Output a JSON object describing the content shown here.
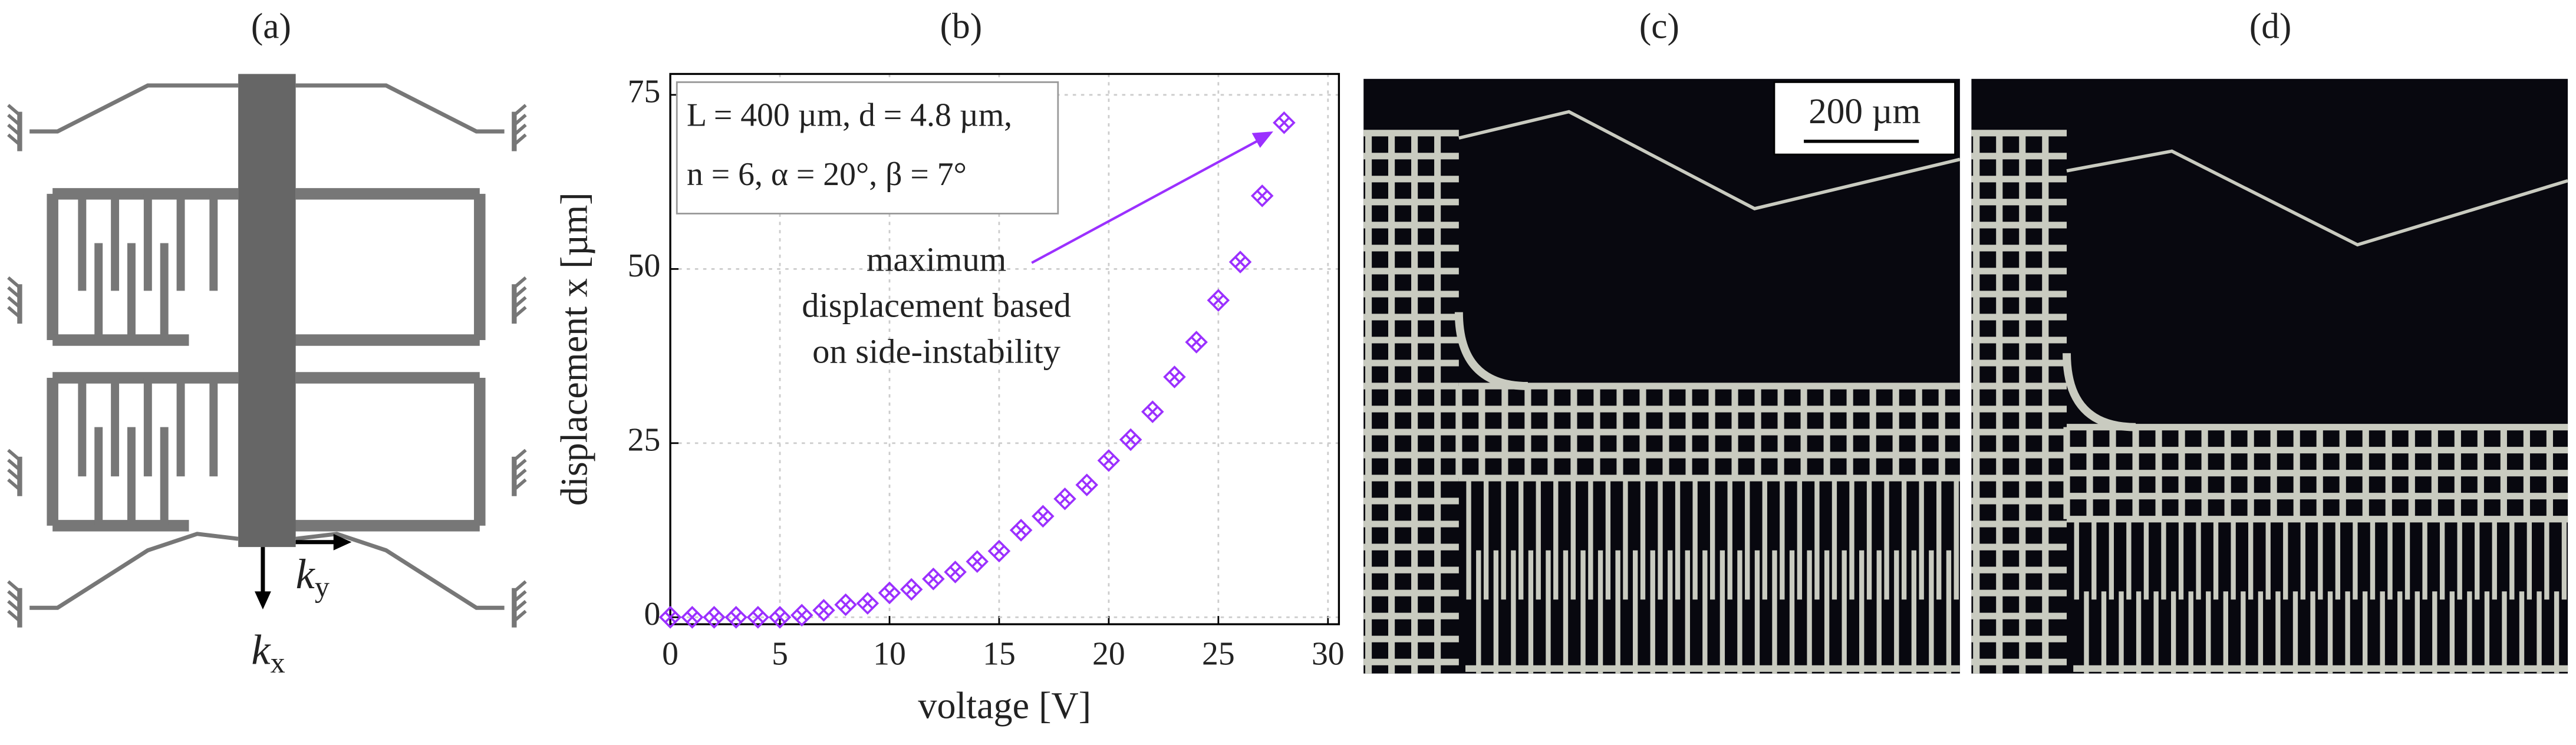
{
  "panels": {
    "a": "(a)",
    "b": "(b)",
    "c": "(c)",
    "d": "(d)"
  },
  "diagram": {
    "ky": {
      "symbol": "k",
      "subscript": "y"
    },
    "kx": {
      "symbol": "k",
      "subscript": "x"
    }
  },
  "micrograph": {
    "scale_bar": "200 µm"
  },
  "chart_data": {
    "type": "scatter",
    "color": "#9b30ff",
    "grid": true,
    "xlabel": "voltage [V]",
    "ylabel": "displacement x [µm]",
    "legend_lines": [
      "L = 400 µm, d = 4.8 µm,",
      "n = 6, α = 20°, β = 7°"
    ],
    "annotation": [
      "maximum",
      "displacement based",
      "on side-instability"
    ],
    "xlim": [
      0,
      30.5
    ],
    "ylim": [
      -1,
      78
    ],
    "xticks": [
      0,
      5,
      10,
      15,
      20,
      25,
      30
    ],
    "yticks": [
      0,
      25,
      50,
      75
    ],
    "x": [
      0,
      1,
      2,
      3,
      4,
      5,
      6,
      7,
      8,
      9,
      10,
      11,
      12,
      13,
      14,
      15,
      16,
      17,
      18,
      19,
      20,
      21,
      22,
      23,
      24,
      25,
      26,
      27,
      28
    ],
    "values": [
      0,
      0,
      0,
      0,
      0,
      0,
      0.3,
      1,
      1.8,
      2,
      3.5,
      4,
      5.5,
      6.5,
      8,
      9.5,
      12.5,
      14.5,
      17,
      19,
      22.5,
      25.5,
      29.5,
      34.5,
      39.5,
      45.5,
      51,
      60.5,
      71
    ]
  }
}
